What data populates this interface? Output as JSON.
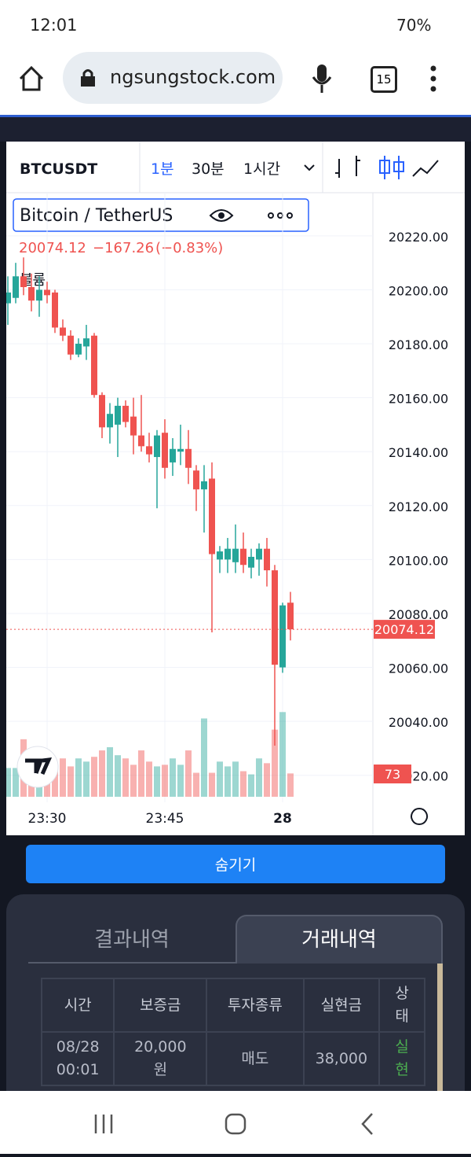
{
  "status": {
    "time": "12:01",
    "battery": "70%"
  },
  "browser": {
    "url": "ngsungstock.com",
    "tabs": "15"
  },
  "toolbar": {
    "symbol": "BTCUSDT",
    "intervals": [
      "1분",
      "30분",
      "1시간"
    ]
  },
  "legend": {
    "name": "Bitcoin / TetherUS",
    "change": "−167.26",
    "percent": "(−0.83%)",
    "volume_label": "볼륨"
  },
  "chart_data": {
    "type": "candlestick",
    "categories": [
      null,
      null,
      null,
      null,
      null,
      "23:30",
      null,
      null,
      null,
      null,
      null,
      null,
      null,
      null,
      null,
      null,
      null,
      null,
      null,
      null,
      "23:45",
      null,
      null,
      null,
      null,
      null,
      null,
      null,
      null,
      null,
      null,
      null,
      null,
      null,
      null,
      "28",
      null
    ],
    "open": [
      20195,
      20197,
      20205,
      20201,
      20196,
      20200,
      20199,
      20186,
      20183,
      20176,
      20179,
      20183,
      20161,
      20149,
      20150,
      20157,
      20153,
      20146,
      20142,
      20138,
      20147,
      20136,
      20140,
      20141,
      20133,
      20126,
      20130,
      20100,
      20100,
      20099,
      20104,
      20097,
      20100,
      20104,
      20096,
      20060,
      20084
    ],
    "high": [
      20205,
      20210,
      20212,
      20206,
      20205,
      20203,
      20200,
      20189,
      20185,
      20182,
      20187,
      20184,
      20162,
      20158,
      20160,
      20159,
      20160,
      20161,
      20147,
      20148,
      20152,
      20145,
      20150,
      20148,
      20135,
      20135,
      20136,
      20105,
      20108,
      20113,
      20110,
      20104,
      20106,
      20108,
      20098,
      20084,
      20088
    ],
    "low": [
      20187,
      20195,
      20198,
      20192,
      20190,
      20195,
      20184,
      20181,
      20174,
      20175,
      20174,
      20160,
      20145,
      20143,
      20138,
      20149,
      20139,
      20140,
      20136,
      20119,
      20130,
      20131,
      20135,
      20128,
      20118,
      20110,
      20073,
      20095,
      20095,
      20095,
      20095,
      20093,
      20094,
      20090,
      20031,
      20058,
      20070
    ],
    "close": [
      20199,
      20205,
      20201,
      20196,
      20200,
      20198,
      20186,
      20183,
      20176,
      20180,
      20182,
      20161,
      20149,
      20154,
      20157,
      20151,
      20146,
      20142,
      20139,
      20146,
      20134,
      20141,
      20141,
      20134,
      20126,
      20129,
      20102,
      20103,
      20104,
      20104,
      20098,
      20101,
      20104,
      20096,
      20061,
      20083,
      20074.12
    ],
    "volume": [
      90,
      90,
      180,
      120,
      95,
      110,
      100,
      120,
      95,
      120,
      110,
      125,
      145,
      155,
      130,
      120,
      100,
      145,
      110,
      95,
      100,
      120,
      100,
      145,
      75,
      245,
      75,
      110,
      95,
      110,
      80,
      70,
      120,
      105,
      210,
      265,
      73
    ],
    "up_color": "#26a69a",
    "down_color": "#ef5350",
    "ylim": [
      20010,
      20236
    ],
    "yticks": [
      {
        "value": 20020,
        "label": "20020.00"
      },
      {
        "value": 20040,
        "label": "20040.00"
      },
      {
        "value": 20060,
        "label": "20060.00"
      },
      {
        "value": 20080,
        "label": "20080.00"
      },
      {
        "value": 20100,
        "label": "20100.00"
      },
      {
        "value": 20120,
        "label": "20120.00"
      },
      {
        "value": 20140,
        "label": "20140.00"
      },
      {
        "value": 20160,
        "label": "20160.00"
      },
      {
        "value": 20180,
        "label": "20180.00"
      },
      {
        "value": 20200,
        "label": "20200.00"
      },
      {
        "value": 20220,
        "label": "20220.00"
      }
    ],
    "vlim": [
      0,
      470
    ],
    "grid": true
  },
  "hide_button": "숨기기",
  "tabs": [
    "결과내역",
    "거래내역"
  ],
  "table": {
    "header": [
      "시간",
      "보증금",
      "투자종류",
      "실현금",
      "상태"
    ],
    "rows": [
      [
        "08/28 00:01",
        "20,000 원",
        "매도",
        "38,000",
        "실현"
      ]
    ]
  }
}
